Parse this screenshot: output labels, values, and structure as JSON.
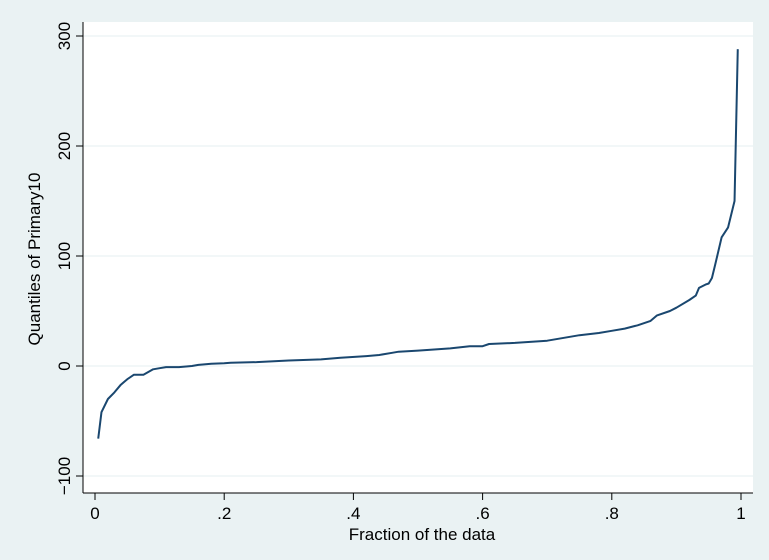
{
  "chart_data": {
    "type": "line",
    "title": "",
    "xlabel": "Fraction of the data",
    "ylabel": "Quantiles of Primary10",
    "xlim": [
      0,
      1
    ],
    "ylim": [
      -100,
      300
    ],
    "x_ticks": [
      0,
      0.2,
      0.4,
      0.6,
      0.8,
      1
    ],
    "x_tick_labels": [
      "0",
      ".2",
      ".4",
      ".6",
      ".8",
      "1"
    ],
    "y_ticks": [
      -100,
      0,
      100,
      200,
      300
    ],
    "y_tick_labels": [
      "−100",
      "0",
      "100",
      "200",
      "300"
    ],
    "grid": "horizontal",
    "legend": "none",
    "colors": {
      "background": "#eaf2f3",
      "plot_area": "#ffffff",
      "line": "#1a476f",
      "grid": "#eaf2f3",
      "axis": "#000000"
    },
    "series": [
      {
        "values": [
          [
            0.005,
            -66
          ],
          [
            0.01,
            -42
          ],
          [
            0.02,
            -30
          ],
          [
            0.03,
            -24
          ],
          [
            0.04,
            -17
          ],
          [
            0.05,
            -12
          ],
          [
            0.06,
            -8
          ],
          [
            0.075,
            -8
          ],
          [
            0.09,
            -3
          ],
          [
            0.1,
            -2
          ],
          [
            0.11,
            -1
          ],
          [
            0.13,
            -1
          ],
          [
            0.15,
            0
          ],
          [
            0.16,
            1
          ],
          [
            0.18,
            2
          ],
          [
            0.2,
            2.5
          ],
          [
            0.21,
            3
          ],
          [
            0.25,
            3.5
          ],
          [
            0.3,
            5
          ],
          [
            0.35,
            6
          ],
          [
            0.38,
            7.5
          ],
          [
            0.42,
            9
          ],
          [
            0.44,
            10
          ],
          [
            0.46,
            12
          ],
          [
            0.47,
            13
          ],
          [
            0.5,
            14
          ],
          [
            0.55,
            16
          ],
          [
            0.58,
            18
          ],
          [
            0.6,
            18
          ],
          [
            0.61,
            20
          ],
          [
            0.65,
            21
          ],
          [
            0.7,
            23
          ],
          [
            0.75,
            28
          ],
          [
            0.78,
            30
          ],
          [
            0.8,
            32
          ],
          [
            0.82,
            34
          ],
          [
            0.84,
            37
          ],
          [
            0.86,
            41
          ],
          [
            0.87,
            46
          ],
          [
            0.89,
            50
          ],
          [
            0.9,
            53
          ],
          [
            0.92,
            60
          ],
          [
            0.93,
            64
          ],
          [
            0.935,
            71
          ],
          [
            0.945,
            74
          ],
          [
            0.95,
            75
          ],
          [
            0.955,
            80
          ],
          [
            0.96,
            92
          ],
          [
            0.97,
            117
          ],
          [
            0.98,
            126
          ],
          [
            0.99,
            150
          ],
          [
            0.995,
            288
          ]
        ]
      }
    ]
  }
}
